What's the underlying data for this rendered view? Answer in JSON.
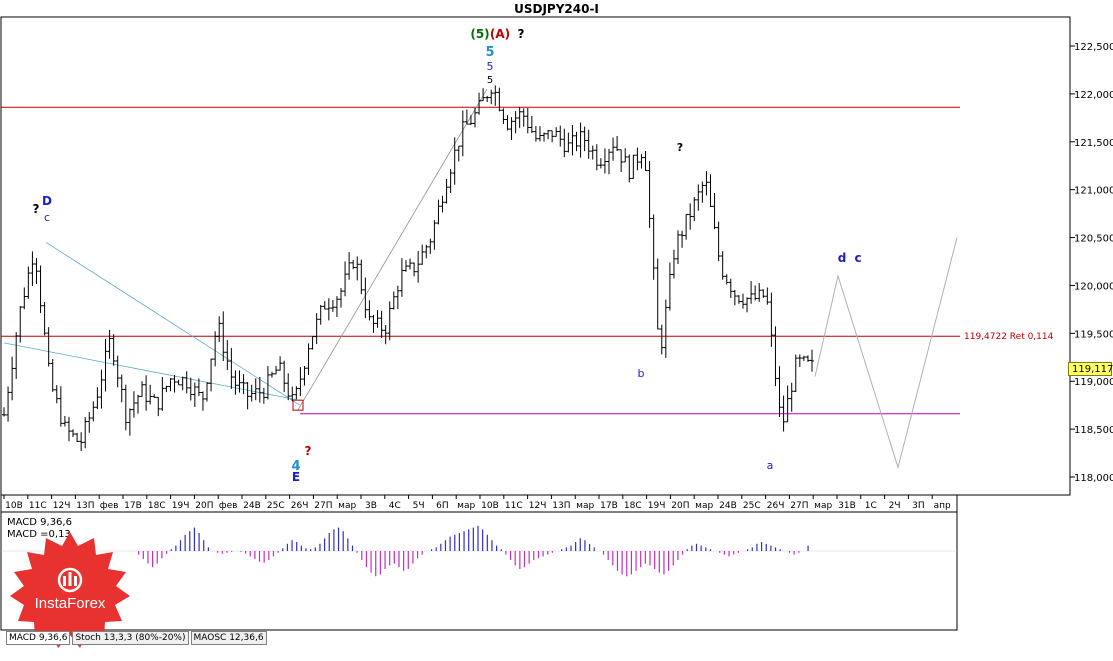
{
  "window": {
    "title": "USDJPY240-I"
  },
  "price_tag": "119,117",
  "level_label": "119,4722 Ret 0,114",
  "macd_label_1": "MACD 9,36,6",
  "macd_label_2": "MACD =0,13",
  "tabs": [
    {
      "label": "MACD 9,36,6"
    },
    {
      "label": "Stoch 13,3,3 (80%-20%)"
    },
    {
      "label": "MAOSC 12,36,6"
    }
  ],
  "brand": {
    "name": "InstaForex",
    "color": "#e8322f"
  },
  "colors": {
    "up_wave": "#1c1cd0",
    "resistance": "#c00000",
    "support": "#c000c0",
    "macd_pos": "#3030c0",
    "macd_neg": "#c030c0"
  },
  "chart_data": {
    "type": "ohlc",
    "title": "USDJPY240-I",
    "y_ticks": [
      "122,500",
      "122,000",
      "121,500",
      "121,000",
      "120,500",
      "120,000",
      "119,500",
      "119,000",
      "118,500",
      "118,000"
    ],
    "ylim": [
      117.85,
      122.75
    ],
    "x_ticks": [
      "10В",
      "11С",
      "12Ч",
      "13П",
      "фев",
      "17В",
      "18С",
      "19Ч",
      "20П",
      "фев",
      "24В",
      "25С",
      "26Ч",
      "27П",
      "мар",
      "3В",
      "4С",
      "5Ч",
      "6П",
      "мар",
      "10В",
      "11С",
      "12Ч",
      "13П",
      "мар",
      "17В",
      "18С",
      "19Ч",
      "20П",
      "мар",
      "24В",
      "25С",
      "26Ч",
      "27П",
      "мар",
      "31В",
      "1С",
      "2Ч",
      "3П",
      "апр"
    ],
    "close_path": [
      118.65,
      119.7,
      120.4,
      119.0,
      118.5,
      118.35,
      118.8,
      119.45,
      118.65,
      118.9,
      118.75,
      119.05,
      119.0,
      118.8,
      119.6,
      119.0,
      118.85,
      118.9,
      119.15,
      118.75,
      119.4,
      119.8,
      119.9,
      120.3,
      119.6,
      119.55,
      120.1,
      120.2,
      120.5,
      121.1,
      121.6,
      121.8,
      122.1,
      121.7,
      121.8,
      121.5,
      121.6,
      121.45,
      121.55,
      121.3,
      121.5,
      121.2,
      121.45,
      119.25,
      120.4,
      120.75,
      121.1,
      120.2,
      119.9,
      119.85,
      119.9,
      118.5,
      119.2,
      119.15
    ],
    "forecast": [
      119.05,
      120.1,
      118.1,
      120.5
    ],
    "levels": [
      {
        "value": 121.86,
        "color": "#c00000"
      },
      {
        "value": 119.47,
        "color": "#c00000",
        "label": "119,4722 Ret 0,114"
      },
      {
        "value": 118.66,
        "color": "#c000c0"
      }
    ],
    "wave_labels": [
      {
        "text": "(5)",
        "color": "#007000"
      },
      {
        "text": "(A)",
        "color": "#c00000"
      },
      {
        "text": "?",
        "color": "#000000"
      },
      {
        "text": "5",
        "color": "#2090d0"
      },
      {
        "text": "5",
        "color": "#1c1cd0"
      },
      {
        "text": "5",
        "color": "#000000"
      },
      {
        "text": "D",
        "color": "#1c1cd0"
      },
      {
        "text": "c",
        "color": "#1c1cd0"
      },
      {
        "text": "?",
        "color": "#000000"
      },
      {
        "text": "E",
        "color": "#1c1cd0"
      },
      {
        "text": "4",
        "color": "#2090d0"
      },
      {
        "text": "?",
        "color": "#c00000"
      },
      {
        "text": "d",
        "color": "#1c1cd0"
      },
      {
        "text": "?",
        "color": "#000000"
      },
      {
        "text": "b",
        "color": "#1c1cd0"
      },
      {
        "text": "a",
        "color": "#1c1cd0"
      },
      {
        "text": "c",
        "color": "#1c1cd0"
      }
    ],
    "macd": {
      "label": "MACD 9,36,6",
      "value": "0,13"
    },
    "grid": false
  }
}
